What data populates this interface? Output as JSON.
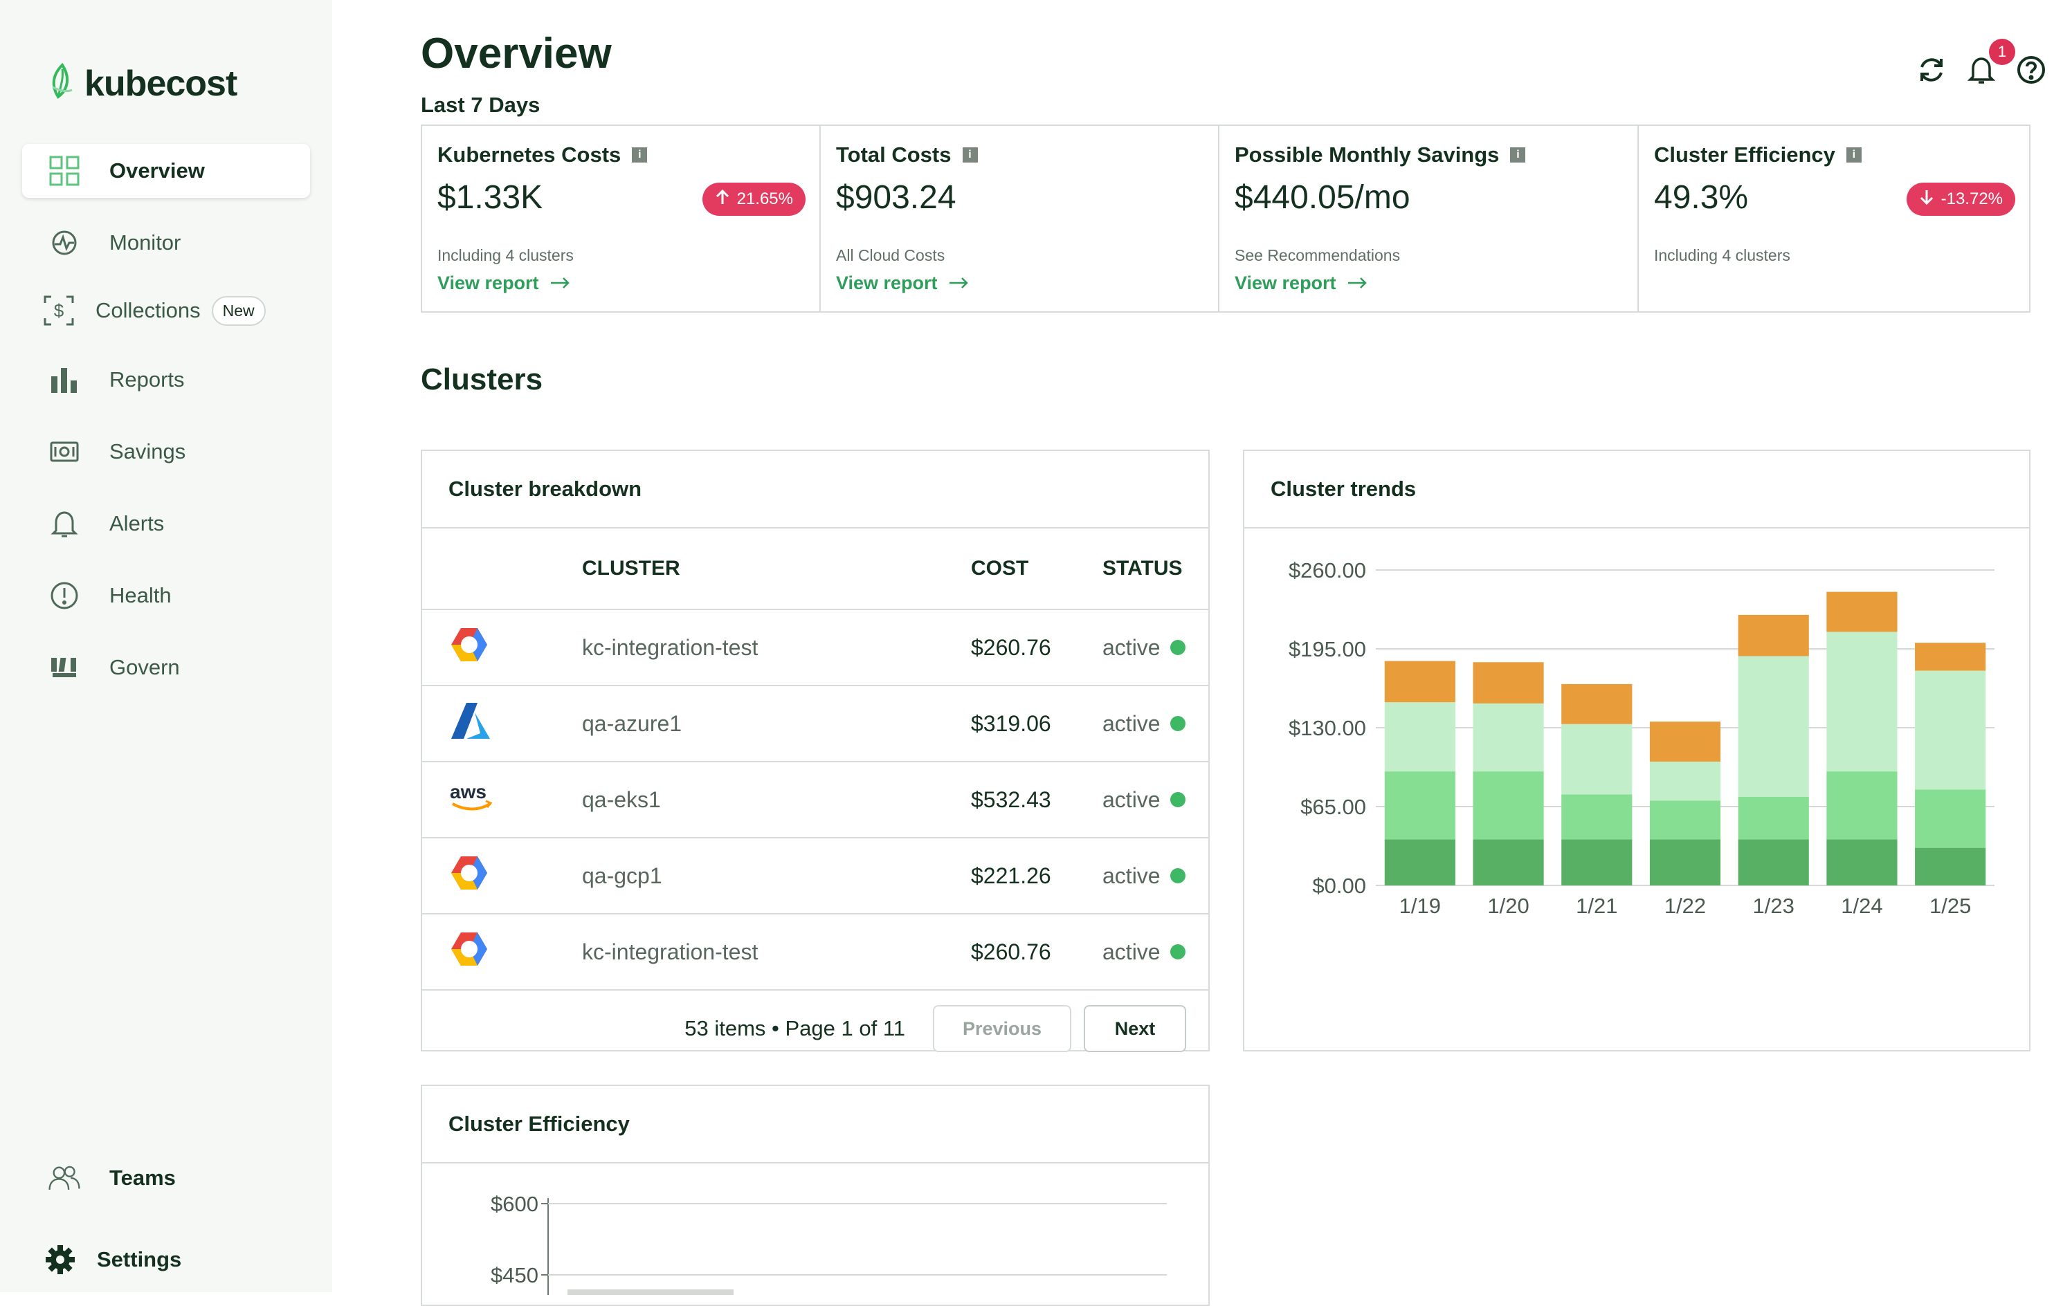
{
  "app": {
    "brand": "kubecost"
  },
  "sidebar": {
    "items": [
      {
        "label": "Overview"
      },
      {
        "label": "Monitor"
      },
      {
        "label": "Collections",
        "badge": "New"
      },
      {
        "label": "Reports"
      },
      {
        "label": "Savings"
      },
      {
        "label": "Alerts"
      },
      {
        "label": "Health"
      },
      {
        "label": "Govern"
      }
    ],
    "bottom": [
      {
        "label": "Teams"
      },
      {
        "label": "Settings"
      }
    ]
  },
  "header": {
    "title": "Overview",
    "subtitle": "Last 7 Days",
    "notification_count": "1"
  },
  "summary": {
    "cards": [
      {
        "title": "Kubernetes Costs",
        "value": "$1.33K",
        "delta": "21.65%",
        "delta_dir": "up",
        "note": "Including 4 clusters",
        "link": "View report"
      },
      {
        "title": "Total Costs",
        "value": "$903.24",
        "note": "All Cloud Costs",
        "link": "View report"
      },
      {
        "title": "Possible Monthly Savings",
        "value": "$440.05/mo",
        "note": "See Recommendations",
        "link": "View report"
      },
      {
        "title": "Cluster Efficiency",
        "value": "49.3%",
        "delta": "-13.72%",
        "delta_dir": "down",
        "note": "Including 4 clusters"
      }
    ],
    "colors": {
      "negative": "#e23b5f",
      "link": "#2f9e5a"
    }
  },
  "clusters_section": {
    "title": "Clusters"
  },
  "breakdown": {
    "title": "Cluster breakdown",
    "columns": [
      "CLUSTER",
      "COST",
      "STATUS"
    ],
    "rows": [
      {
        "provider": "gcp-icon",
        "name": "kc-integration-test",
        "cost": "$260.76",
        "status": "active"
      },
      {
        "provider": "azure-icon",
        "name": "qa-azure1",
        "cost": "$319.06",
        "status": "active"
      },
      {
        "provider": "aws-icon",
        "name": "qa-eks1",
        "cost": "$532.43",
        "status": "active"
      },
      {
        "provider": "gcp-icon",
        "name": "qa-gcp1",
        "cost": "$221.26",
        "status": "active"
      },
      {
        "provider": "gcp-icon",
        "name": "kc-integration-test",
        "cost": "$260.76",
        "status": "active"
      }
    ],
    "pagination": {
      "summary": "53 items • Page 1 of 11",
      "prev": "Previous",
      "next": "Next"
    },
    "aws_wordmark": "aws"
  },
  "trends": {
    "title": "Cluster trends"
  },
  "efficiency": {
    "title": "Cluster Efficiency"
  },
  "chart_data": [
    {
      "type": "bar",
      "stacked": true,
      "categories": [
        "1/19",
        "1/20",
        "1/21",
        "1/22",
        "1/23",
        "1/24",
        "1/25"
      ],
      "ylim": [
        0,
        260
      ],
      "yticks": [
        "$0.00",
        "$65.00",
        "$130.00",
        "$195.00",
        "$260.00"
      ],
      "ytick_values": [
        0,
        65,
        130,
        195,
        260
      ],
      "series": [
        {
          "color": "#58b065",
          "values": [
            38,
            38,
            38,
            38,
            38,
            38,
            31
          ]
        },
        {
          "color": "#86de93",
          "values": [
            56,
            56,
            37,
            32,
            35,
            56,
            48
          ]
        },
        {
          "color": "#c2efca",
          "values": [
            57,
            56,
            58,
            32,
            116,
            115,
            98
          ]
        },
        {
          "color": "#e89d3a",
          "values": [
            34,
            34,
            33,
            33,
            34,
            33,
            23
          ]
        }
      ]
    },
    {
      "type": "bar",
      "yticks": [
        "$600",
        "$450"
      ],
      "ytick_values": [
        600,
        450
      ]
    }
  ]
}
